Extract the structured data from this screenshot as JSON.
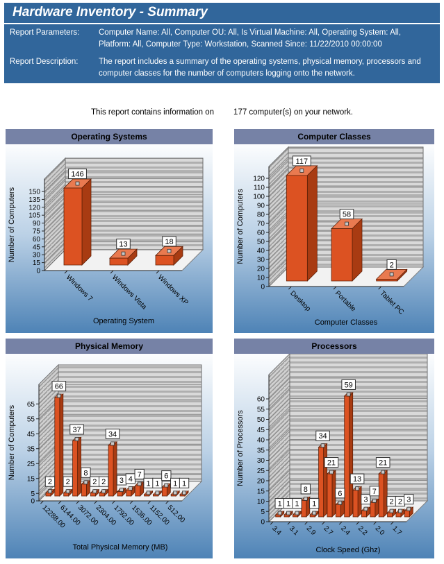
{
  "header": {
    "title": "Hardware Inventory - Summary",
    "params_label": "Report Parameters:",
    "params_value": "Computer Name:  All, Computer OU:  All, Is Virtual Machine:  All, Operating System:  All, Platform:  All, Computer Type:  Workstation, Scanned Since: 11/22/2010 00:00:00",
    "desc_label": "Report Description:",
    "desc_value": "The report includes a summary of the operating systems, physical memory, processors and computer classes for the number of computers logging onto the network."
  },
  "summary_line": {
    "prefix": "This report contains information on",
    "suffix": "177 computer(s) on your network."
  },
  "colors": {
    "header_bg": "#31669B",
    "header_text": "#FFFFFF",
    "panel_header_bg": "#7682A6",
    "panel_header_text": "#000000",
    "panel_gradient_top": "#FCFDFE",
    "panel_gradient_mid": "#BBD1E6",
    "panel_gradient_bottom": "#4E83B6",
    "bar_front": "#DC5222",
    "bar_top": "#E97A50",
    "bar_side": "#A83B12",
    "bar_edge": "#5E2008",
    "wall_light": "#D9D9D9",
    "wall_dark": "#AFAFAF",
    "floor": "#F2F2F2"
  },
  "chart_data": [
    {
      "type": "bar",
      "title": "Operating Systems",
      "xlabel": "Operating System",
      "ylabel": "Number of Computers",
      "categories": [
        "Windows 7",
        "Windows Vista",
        "Windows XP"
      ],
      "values": [
        146,
        13,
        18
      ],
      "yticks": [
        0,
        15,
        30,
        45,
        60,
        75,
        90,
        105,
        120,
        135,
        150
      ],
      "ylim": [
        0,
        150
      ],
      "label_every": 1,
      "legend": "none",
      "grid": "on"
    },
    {
      "type": "bar",
      "title": "Computer Classes",
      "xlabel": "Computer Classes",
      "ylabel": "Number of Computers",
      "categories": [
        "Desktop",
        "Portable",
        "Tablet PC"
      ],
      "values": [
        117,
        58,
        2
      ],
      "yticks": [
        0,
        10,
        20,
        30,
        40,
        50,
        60,
        70,
        80,
        90,
        100,
        110,
        120
      ],
      "ylim": [
        0,
        120
      ],
      "label_every": 1,
      "legend": "none",
      "grid": "on"
    },
    {
      "type": "bar",
      "title": "Physical Memory",
      "xlabel": "Total Physical Memory (MB)",
      "ylabel": "Number of Computers",
      "xtick_labels": [
        "12288.00",
        "6144.00",
        "3072.00",
        "2304.00",
        "1792.00",
        "1536.00",
        "1152.00",
        "512.00"
      ],
      "values": [
        2,
        66,
        2,
        37,
        8,
        2,
        2,
        34,
        3,
        4,
        7,
        1,
        1,
        6,
        1,
        1
      ],
      "yticks": [
        0,
        5,
        15,
        25,
        35,
        45,
        55,
        65
      ],
      "ylim": [
        0,
        65
      ],
      "label_every": 2,
      "legend": "none",
      "grid": "on"
    },
    {
      "type": "bar",
      "title": "Processors",
      "xlabel": "Clock Speed (Ghz)",
      "ylabel": "Number of Processors",
      "xtick_labels": [
        "3.4",
        "3.1",
        "2.9",
        "2.7",
        "2.4",
        "2.2",
        "2.0",
        "1.7"
      ],
      "values": [
        1,
        1,
        1,
        8,
        1,
        34,
        21,
        6,
        59,
        13,
        3,
        7,
        21,
        2,
        2,
        3
      ],
      "yticks": [
        0,
        5,
        10,
        15,
        20,
        25,
        30,
        35,
        40,
        45,
        50,
        55,
        60
      ],
      "ylim": [
        0,
        60
      ],
      "label_every": 2,
      "legend": "none",
      "grid": "on"
    }
  ]
}
